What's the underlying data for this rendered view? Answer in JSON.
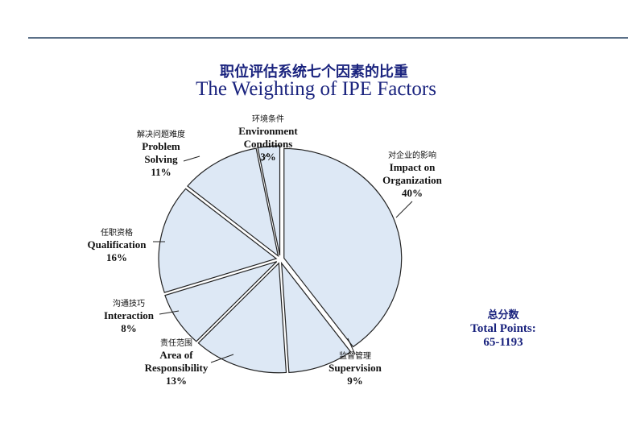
{
  "chart_data": {
    "type": "pie",
    "title_zh": "职位评估系统七个因素的比重",
    "title": "The Weighting of IPE Factors",
    "categories": [
      "Impact on Organization",
      "Supervision",
      "Area of Responsibility",
      "Interaction",
      "Qualification",
      "Problem Solving",
      "Environment Conditions"
    ],
    "categories_zh": [
      "对企业的影响",
      "监督管理",
      "责任范围",
      "沟通技巧",
      "任职资格",
      "解决问题难度",
      "环境条件"
    ],
    "values": [
      40,
      9,
      13,
      8,
      16,
      11,
      3
    ],
    "value_labels": [
      "40%",
      "9%",
      "13%",
      "8%",
      "16%",
      "11%",
      "3%"
    ],
    "color": "#dde8f5",
    "total_zh": "总分数",
    "total_label": "Total Points:",
    "total_value": "65-1193"
  }
}
